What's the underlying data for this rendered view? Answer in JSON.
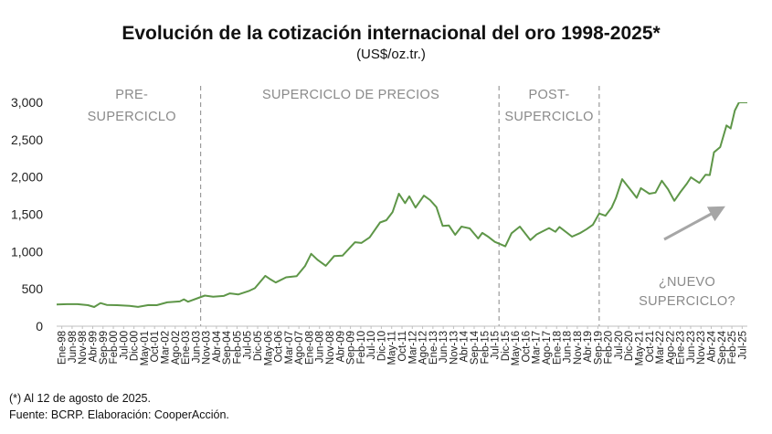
{
  "chart_data": {
    "type": "line",
    "title": "Evolución de la cotización internacional del oro 1998-2025*",
    "subtitle": "(US$/oz.tr.)",
    "ylim": [
      0,
      3000
    ],
    "yticks": [
      "0",
      "500",
      "1,000",
      "1,500",
      "2,000",
      "2,500",
      "3,000"
    ],
    "ytick_values": [
      0,
      500,
      1000,
      1500,
      2000,
      2500,
      3000
    ],
    "grid": false,
    "legend": "none",
    "x_start": "1998-01",
    "x_end": "2025-08",
    "xtick_labels": [
      "Ene-98",
      "Jun-98",
      "Nov-98",
      "Abr-99",
      "Sep-99",
      "Feb-00",
      "Jul-00",
      "Dic-00",
      "May-01",
      "Oct-01",
      "Mar-02",
      "Ago-02",
      "Ene-03",
      "Jun-03",
      "Nov-03",
      "Abr-04",
      "Sep-04",
      "Feb-05",
      "Jul-05",
      "Dic-05",
      "May-06",
      "Oct-06",
      "Mar-07",
      "Ago-07",
      "Ene-08",
      "Jun-08",
      "Nov-08",
      "Abr-09",
      "Sep-09",
      "Feb-10",
      "Jul-10",
      "Dic-10",
      "May-11",
      "Oct-11",
      "Mar-12",
      "Ago-12",
      "Ene-13",
      "Jun-13",
      "Nov-13",
      "Abr-14",
      "Sep-14",
      "Feb-15",
      "Jul-15",
      "Dic-15",
      "May-16",
      "Oct-16",
      "Mar-17",
      "Ago-17",
      "Ene-18",
      "Jun-18",
      "Nov-18",
      "Abr-19",
      "Sep-19",
      "Feb-20",
      "Jul-20",
      "Dic-20",
      "May-21",
      "Oct-21",
      "Mar-22",
      "Ago-22",
      "Ene-23",
      "Jun-23",
      "Nov-23",
      "Abr-24",
      "Sep-24",
      "Feb-25",
      "Jul-25"
    ],
    "series": [
      {
        "color": "#5e9648",
        "points": [
          [
            "1998-01",
            290
          ],
          [
            "1998-06",
            295
          ],
          [
            "1998-11",
            295
          ],
          [
            "1999-04",
            282
          ],
          [
            "1999-07",
            257
          ],
          [
            "1999-10",
            310
          ],
          [
            "2000-01",
            285
          ],
          [
            "2000-06",
            282
          ],
          [
            "2000-12",
            272
          ],
          [
            "2001-04",
            258
          ],
          [
            "2001-09",
            283
          ],
          [
            "2002-01",
            282
          ],
          [
            "2002-06",
            320
          ],
          [
            "2002-12",
            332
          ],
          [
            "2003-02",
            360
          ],
          [
            "2003-04",
            328
          ],
          [
            "2003-09",
            380
          ],
          [
            "2003-12",
            410
          ],
          [
            "2004-04",
            395
          ],
          [
            "2004-09",
            405
          ],
          [
            "2004-12",
            440
          ],
          [
            "2005-04",
            425
          ],
          [
            "2005-09",
            470
          ],
          [
            "2005-12",
            510
          ],
          [
            "2006-05",
            675
          ],
          [
            "2006-07",
            635
          ],
          [
            "2006-10",
            585
          ],
          [
            "2007-03",
            655
          ],
          [
            "2007-08",
            670
          ],
          [
            "2007-12",
            805
          ],
          [
            "2008-03",
            970
          ],
          [
            "2008-06",
            890
          ],
          [
            "2008-10",
            810
          ],
          [
            "2009-02",
            940
          ],
          [
            "2009-06",
            945
          ],
          [
            "2009-12",
            1125
          ],
          [
            "2010-03",
            1115
          ],
          [
            "2010-07",
            1190
          ],
          [
            "2010-12",
            1390
          ],
          [
            "2011-03",
            1420
          ],
          [
            "2011-06",
            1530
          ],
          [
            "2011-09",
            1775
          ],
          [
            "2011-12",
            1650
          ],
          [
            "2012-02",
            1740
          ],
          [
            "2012-05",
            1590
          ],
          [
            "2012-09",
            1750
          ],
          [
            "2012-12",
            1690
          ],
          [
            "2013-03",
            1595
          ],
          [
            "2013-06",
            1345
          ],
          [
            "2013-09",
            1350
          ],
          [
            "2013-12",
            1225
          ],
          [
            "2014-03",
            1335
          ],
          [
            "2014-07",
            1310
          ],
          [
            "2014-11",
            1175
          ],
          [
            "2015-01",
            1250
          ],
          [
            "2015-04",
            1195
          ],
          [
            "2015-07",
            1130
          ],
          [
            "2015-12",
            1070
          ],
          [
            "2016-03",
            1245
          ],
          [
            "2016-07",
            1335
          ],
          [
            "2016-12",
            1155
          ],
          [
            "2017-03",
            1230
          ],
          [
            "2017-09",
            1315
          ],
          [
            "2017-12",
            1265
          ],
          [
            "2018-02",
            1330
          ],
          [
            "2018-08",
            1200
          ],
          [
            "2018-12",
            1250
          ],
          [
            "2019-03",
            1300
          ],
          [
            "2019-06",
            1360
          ],
          [
            "2019-09",
            1510
          ],
          [
            "2019-12",
            1480
          ],
          [
            "2020-03",
            1590
          ],
          [
            "2020-05",
            1715
          ],
          [
            "2020-08",
            1970
          ],
          [
            "2020-11",
            1865
          ],
          [
            "2021-03",
            1720
          ],
          [
            "2021-05",
            1850
          ],
          [
            "2021-09",
            1775
          ],
          [
            "2021-12",
            1790
          ],
          [
            "2022-03",
            1950
          ],
          [
            "2022-06",
            1835
          ],
          [
            "2022-09",
            1680
          ],
          [
            "2022-12",
            1800
          ],
          [
            "2023-03",
            1910
          ],
          [
            "2023-05",
            1995
          ],
          [
            "2023-09",
            1920
          ],
          [
            "2023-12",
            2030
          ],
          [
            "2024-02",
            2025
          ],
          [
            "2024-04",
            2330
          ],
          [
            "2024-07",
            2400
          ],
          [
            "2024-10",
            2690
          ],
          [
            "2024-12",
            2650
          ],
          [
            "2025-02",
            2890
          ],
          [
            "2025-04",
            3100
          ],
          [
            "2025-08",
            3370
          ]
        ]
      }
    ],
    "regions": [
      {
        "label_lines": [
          "PRE-",
          "SUPERCICLO"
        ],
        "from": "1998-01",
        "to": "2003-10",
        "label_at": "2001-01"
      },
      {
        "label_lines": [
          "SUPERCICLO DE PRECIOS"
        ],
        "from": "2003-10",
        "to": "2015-09",
        "label_at": "2009-10"
      },
      {
        "label_lines": [
          "POST-",
          "SUPERCICLO"
        ],
        "from": "2015-09",
        "to": "2019-09",
        "label_at": "2017-09"
      }
    ],
    "dividers": [
      "2003-10",
      "2015-09",
      "2019-09"
    ],
    "annotation": {
      "lines": [
        "¿NUEVO",
        "SUPERCICLO?"
      ],
      "arrow_color": "#a6a6a6"
    }
  },
  "footnotes": {
    "note": "(*) Al 12 de agosto de 2025.",
    "source": "Fuente: BCRP. Elaboración: CooperAcción."
  }
}
